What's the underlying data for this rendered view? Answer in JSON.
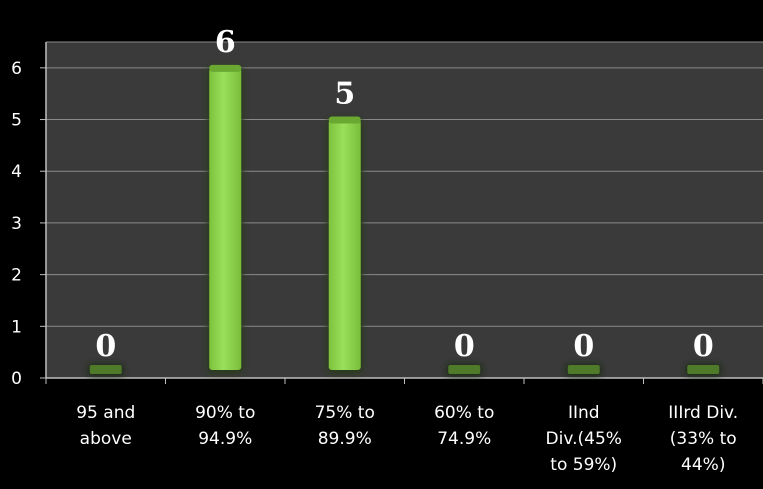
{
  "chart_data": {
    "type": "bar",
    "categories": [
      [
        "95 and",
        "above"
      ],
      [
        "90% to",
        "94.9%"
      ],
      [
        "75% to",
        "89.9%"
      ],
      [
        "60% to",
        "74.9%"
      ],
      [
        "IInd",
        "Div.(45%",
        "to 59%)"
      ],
      [
        "IIIrd Div.",
        "(33% to",
        "44%)"
      ]
    ],
    "values": [
      0,
      6,
      5,
      0,
      0,
      0
    ],
    "data_labels": [
      "0",
      "6",
      "5",
      "0",
      "0",
      "0"
    ],
    "y_ticks": [
      "0",
      "1",
      "2",
      "3",
      "4",
      "5",
      "6"
    ],
    "ylim": [
      0,
      6.5
    ],
    "title": "",
    "xlabel": "",
    "ylabel": "",
    "grid": true,
    "legend": "none",
    "colors": {
      "background": "#000000",
      "plot_area": "#3a3a3a",
      "gridline": "#8a8a8a",
      "bar": "#8ed14a",
      "bar_top": "#6aa832",
      "zero_bar": "#4f7a2a",
      "text": "#ffffff"
    }
  }
}
